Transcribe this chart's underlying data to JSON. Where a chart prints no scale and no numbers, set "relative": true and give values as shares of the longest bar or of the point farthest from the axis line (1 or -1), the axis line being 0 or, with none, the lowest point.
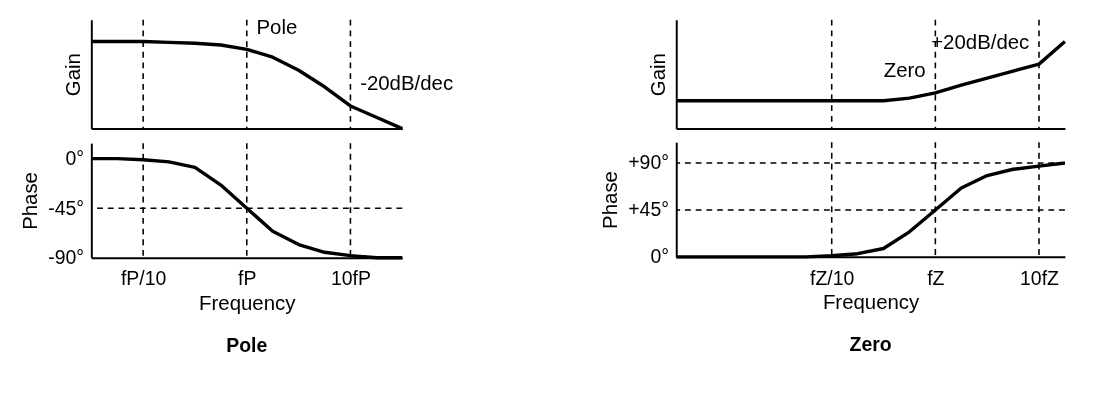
{
  "chart_data": [
    {
      "type": "line",
      "ylabel": "Gain",
      "relative": true,
      "grid": false,
      "tick_labels": false,
      "line_style": "solid",
      "categories": [
        null,
        null,
        "fP/10",
        null,
        null,
        null,
        "fP",
        null,
        null,
        null,
        "10fP",
        null,
        null
      ],
      "series": [
        {
          "color": "#000000",
          "values": [
            1,
            1,
            1,
            0.99,
            0.98,
            0.96,
            0.91,
            0.82,
            0.67,
            0.48,
            0.26,
            0.13,
            0
          ]
        }
      ],
      "ref_lines": [
        {
          "axis": "x",
          "value": "fP/10",
          "color": "#000000",
          "line_style": "dashed"
        },
        {
          "axis": "x",
          "value": "fP",
          "color": "#000000",
          "line_style": "dashed"
        },
        {
          "axis": "x",
          "value": "10fP",
          "color": "#000000",
          "line_style": "dashed"
        }
      ],
      "annotations": [
        {
          "text": "Pole",
          "x": "fP",
          "y": 0.91
        },
        {
          "text": "-20dB/dec",
          "x": "10fP",
          "y": 0.26
        }
      ]
    },
    {
      "type": "line",
      "title": "Pole",
      "xlabel": "Frequency",
      "ylabel": "Phase",
      "ylim": [
        -90,
        14
      ],
      "grid": false,
      "line_style": "solid",
      "categories": [
        null,
        null,
        "fP/10",
        null,
        null,
        null,
        "fP",
        null,
        null,
        null,
        "10fP",
        null,
        null
      ],
      "yticks": [
        {
          "value": 0,
          "label": "0°"
        },
        {
          "value": -45,
          "label": "-45°"
        },
        {
          "value": -90,
          "label": "-90°"
        }
      ],
      "series": [
        {
          "color": "#000000",
          "values": [
            0,
            0,
            -1,
            -3,
            -8,
            -24,
            -45,
            -66,
            -78,
            -85,
            -88,
            -90,
            -90
          ]
        }
      ],
      "ref_lines": [
        {
          "axis": "x",
          "value": "fP/10",
          "color": "#000000",
          "line_style": "dashed"
        },
        {
          "axis": "x",
          "value": "fP",
          "color": "#000000",
          "line_style": "dashed"
        },
        {
          "axis": "x",
          "value": "10fP",
          "color": "#000000",
          "line_style": "dashed"
        },
        {
          "axis": "y",
          "value": -45,
          "color": "#000000",
          "line_style": "dashed"
        }
      ]
    },
    {
      "type": "line",
      "ylabel": "Gain",
      "relative": true,
      "grid": false,
      "tick_labels": false,
      "line_style": "solid",
      "categories": [
        null,
        null,
        null,
        null,
        null,
        null,
        "fZ/10",
        null,
        null,
        null,
        "fZ",
        null,
        null,
        null,
        "10fZ",
        null
      ],
      "series": [
        {
          "color": "#000000",
          "values": [
            0.32,
            0.32,
            0.32,
            0.32,
            0.32,
            0.32,
            0.32,
            0.32,
            0.32,
            0.35,
            0.41,
            0.5,
            0.58,
            0.66,
            0.74,
            1
          ]
        }
      ],
      "ref_lines": [
        {
          "axis": "x",
          "value": "fZ/10",
          "color": "#000000",
          "line_style": "dashed"
        },
        {
          "axis": "x",
          "value": "fZ",
          "color": "#000000",
          "line_style": "dashed"
        },
        {
          "axis": "x",
          "value": "10fZ",
          "color": "#000000",
          "line_style": "dashed"
        }
      ],
      "annotations": [
        {
          "text": "Zero",
          "x": "fZ",
          "y": 0.41
        },
        {
          "text": "+20dB/dec",
          "x": "10fZ",
          "y": 0.74
        }
      ]
    },
    {
      "type": "line",
      "title": "Zero",
      "xlabel": "Frequency",
      "ylabel": "Phase",
      "ylim": [
        0,
        110
      ],
      "grid": false,
      "line_style": "solid",
      "categories": [
        null,
        null,
        null,
        null,
        null,
        null,
        "fZ/10",
        null,
        null,
        null,
        "fZ",
        null,
        null,
        null,
        "10fZ",
        null
      ],
      "yticks": [
        {
          "value": 0,
          "label": "0°"
        },
        {
          "value": 45,
          "label": "+45°"
        },
        {
          "value": 90,
          "label": "+90°"
        }
      ],
      "series": [
        {
          "color": "#000000",
          "values": [
            0,
            0,
            0,
            0,
            0,
            0,
            1,
            3,
            8,
            24,
            45,
            66,
            78,
            84,
            87,
            90
          ]
        }
      ],
      "ref_lines": [
        {
          "axis": "x",
          "value": "fZ/10",
          "color": "#000000",
          "line_style": "dashed"
        },
        {
          "axis": "x",
          "value": "fZ",
          "color": "#000000",
          "line_style": "dashed"
        },
        {
          "axis": "x",
          "value": "10fZ",
          "color": "#000000",
          "line_style": "dashed"
        },
        {
          "axis": "y",
          "value": 45,
          "color": "#000000",
          "line_style": "dashed"
        },
        {
          "axis": "y",
          "value": 90,
          "color": "#000000",
          "line_style": "dashed"
        }
      ]
    }
  ]
}
